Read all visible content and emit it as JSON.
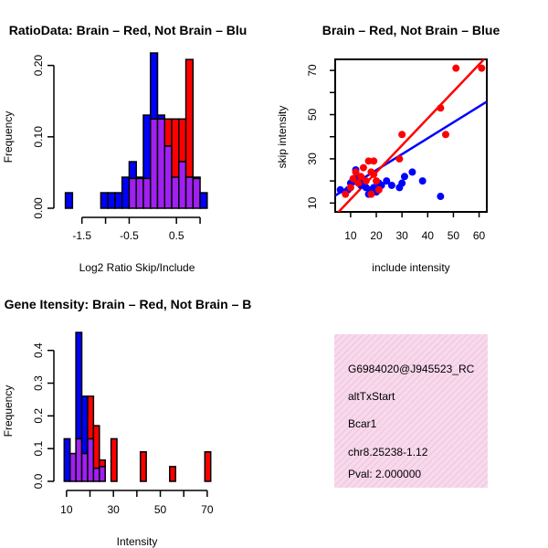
{
  "colors": {
    "brain": "#ff0000",
    "not_brain": "#0000ff",
    "overlap": "#a020f0",
    "info_bg": "#f7d9ec",
    "pval": "#8b0000"
  },
  "chart_data": [
    {
      "id": "ratio_hist",
      "type": "bar",
      "title": "RatioData: Brain – Red, Not Brain – Blu",
      "xlabel": "Log2 Ratio Skip/Include",
      "ylabel": "Frequency",
      "xlim": [
        -1.9,
        1.25
      ],
      "ylim": [
        0,
        0.22
      ],
      "xticks": [
        -1.5,
        -0.5,
        0.5
      ],
      "xtick_labels": [
        "-1.5",
        "-0.5",
        "0.5"
      ],
      "xaxis_range": [
        -1.5,
        1.0
      ],
      "yticks": [
        0,
        0.1,
        0.2
      ],
      "ytick_labels": [
        "0.00",
        "0.10",
        "0.20"
      ],
      "bin_width": 0.15,
      "bins_start": [
        -1.85,
        -1.7,
        -1.55,
        -1.4,
        -1.25,
        -1.1,
        -0.95,
        -0.8,
        -0.65,
        -0.5,
        -0.35,
        -0.2,
        -0.05,
        0.1,
        0.25,
        0.4,
        0.55,
        0.7,
        0.85,
        1.0
      ],
      "series": [
        {
          "name": "Not Brain",
          "values": [
            0.0217,
            0,
            0,
            0,
            0,
            0.0217,
            0.0217,
            0.0217,
            0.0435,
            0.0652,
            0.0435,
            0.1304,
            0.2174,
            0.1304,
            0.087,
            0.0435,
            0.0652,
            0.0435,
            0.0435,
            0.0217
          ]
        },
        {
          "name": "Brain",
          "values": [
            0,
            0,
            0,
            0,
            0,
            0,
            0,
            0,
            0,
            0.0417,
            0.0417,
            0.0417,
            0.125,
            0.125,
            0.125,
            0.125,
            0.125,
            0.2083,
            0.0417,
            0
          ]
        }
      ]
    },
    {
      "id": "intensity_scatter",
      "type": "scatter",
      "title": "Brain – Red, Not Brain – Blue",
      "xlabel": "include intensity",
      "ylabel": "skip intensity",
      "xlim": [
        4,
        63
      ],
      "ylim": [
        6,
        75
      ],
      "xticks": [
        10,
        20,
        30,
        40,
        50,
        60
      ],
      "xtick_labels": [
        "10",
        "20",
        "30",
        "40",
        "50",
        "60"
      ],
      "yticks": [
        10,
        30,
        50,
        70
      ],
      "ytick_labels": [
        "10",
        "30",
        "50",
        "70"
      ],
      "series": [
        {
          "name": "Brain",
          "x": [
            8,
            10,
            11,
            12,
            13,
            14,
            15,
            16,
            17,
            18,
            18,
            19,
            19,
            20,
            21,
            29,
            30,
            45,
            47,
            51,
            61
          ],
          "y": [
            14,
            17,
            21,
            24,
            19,
            22,
            26,
            20,
            29,
            24,
            14,
            29,
            23,
            20,
            16,
            30,
            41,
            53,
            41,
            71,
            71
          ],
          "fit": {
            "slope": 1.22,
            "intercept": -0.5
          }
        },
        {
          "name": "Not Brain",
          "x": [
            6,
            8,
            9,
            10,
            11,
            12,
            13,
            14,
            15,
            16,
            17,
            18,
            19,
            20,
            21,
            22,
            24,
            26,
            29,
            30,
            31,
            34,
            38,
            45
          ],
          "y": [
            16,
            15,
            16,
            19,
            21,
            25,
            22,
            18,
            20,
            17,
            14,
            16,
            17,
            15,
            19,
            18,
            20,
            18,
            17,
            19,
            22,
            24,
            20,
            13
          ],
          "fit": {
            "slope": 0.72,
            "intercept": 10.5
          }
        }
      ]
    },
    {
      "id": "intensity_hist",
      "type": "bar",
      "title": "Gene Itensity: Brain – Red, Not Brain – B",
      "xlabel": "Intensity",
      "ylabel": "Frequency",
      "xlim": [
        8.5,
        72
      ],
      "ylim": [
        0,
        0.48
      ],
      "xticks": [
        10,
        30,
        50,
        70
      ],
      "xtick_labels": [
        "10",
        "30",
        "50",
        "70"
      ],
      "xticks_minor": [
        20,
        40,
        60
      ],
      "xtick_labels_minor": [
        "20",
        "40",
        "60"
      ],
      "yticks": [
        0,
        0.1,
        0.2,
        0.3,
        0.4
      ],
      "ytick_labels": [
        "0.0",
        "0.1",
        "0.2",
        "0.3",
        "0.4"
      ],
      "bin_width": 2.5,
      "bins_start": [
        9,
        11.5,
        14,
        16.5,
        19,
        21.5,
        24,
        26.5,
        29,
        31.5,
        34,
        36.5,
        39,
        41.5,
        44,
        46.5,
        49,
        51.5,
        54,
        56.5,
        59,
        61.5,
        64,
        66.5,
        69
      ],
      "series": [
        {
          "name": "Not Brain",
          "values": [
            0.13,
            0.085,
            0.455,
            0.26,
            0.13,
            0.04,
            0.045,
            0,
            0,
            0,
            0,
            0,
            0,
            0,
            0,
            0,
            0,
            0,
            0,
            0,
            0,
            0,
            0,
            0,
            0
          ]
        },
        {
          "name": "Brain",
          "values": [
            0,
            0.085,
            0.13,
            0.085,
            0.26,
            0.17,
            0.065,
            0,
            0.13,
            0,
            0,
            0,
            0,
            0.09,
            0,
            0,
            0,
            0,
            0.045,
            0,
            0,
            0,
            0,
            0,
            0.09
          ]
        }
      ]
    }
  ],
  "info_panel": {
    "id_text": "G6984020@J945523_RC",
    "event_type": "altTxStart",
    "gene": "Bcar1",
    "location": "chr8.25238-1.12",
    "pval": "Pval: 2.000000"
  }
}
